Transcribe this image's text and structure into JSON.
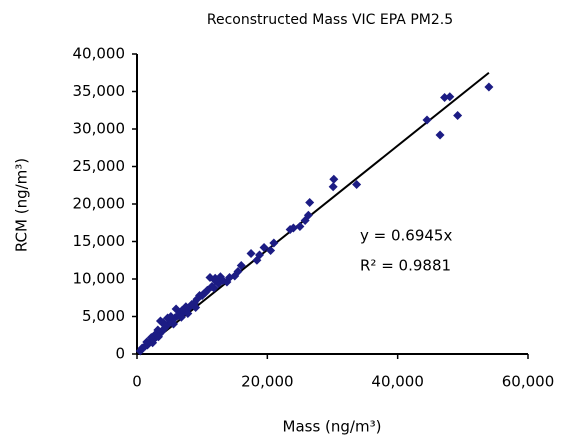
{
  "chart_data": {
    "type": "scatter",
    "title": "Reconstructed Mass VIC EPA PM2.5",
    "x_label": "Mass (ng/m³)",
    "y_label": "RCM (ng/m³)",
    "color": "#1c1c84",
    "line_color": "#000000",
    "x": [
      54000,
      49200,
      48000,
      47200,
      46500,
      44500,
      33700,
      30200,
      30100,
      26500,
      26300,
      25800,
      25000,
      24000,
      23500,
      21000,
      20500,
      19500,
      18800,
      18400,
      17500,
      16000,
      15500,
      14200,
      13800,
      12800,
      12500,
      12000,
      11500,
      11200,
      10800,
      10500,
      10000,
      9600,
      9200,
      8800,
      8400,
      8000,
      7500,
      7200,
      6900,
      6600,
      6200,
      5800,
      5400,
      5000,
      4700,
      4500,
      4200,
      4000,
      3800,
      3500,
      3200,
      3000,
      2800,
      2500,
      2200,
      1900,
      1600,
      1200,
      800,
      500,
      3600,
      4300,
      5200,
      6000,
      6400,
      7800,
      9000,
      11800,
      13200,
      15000,
      12000,
      10200,
      8600,
      2400,
      3300,
      1500,
      6800,
      5600
    ],
    "values": [
      35600,
      31800,
      34300,
      34200,
      29200,
      31200,
      22600,
      23300,
      22300,
      20200,
      18500,
      17800,
      17000,
      16800,
      16600,
      14800,
      13800,
      14200,
      13200,
      12500,
      13400,
      11800,
      11000,
      10200,
      9600,
      10300,
      9400,
      10100,
      9000,
      10200,
      8500,
      8200,
      7800,
      7800,
      7300,
      6800,
      6600,
      6200,
      6300,
      5600,
      5800,
      5400,
      5100,
      4800,
      4600,
      4200,
      4800,
      3700,
      3400,
      4200,
      3000,
      2700,
      3200,
      2300,
      2600,
      1900,
      2200,
      1500,
      1200,
      1000,
      800,
      400,
      4400,
      3800,
      5000,
      6000,
      5200,
      5400,
      6200,
      8800,
      9800,
      10400,
      9800,
      8000,
      6600,
      1500,
      2300,
      1600,
      4900,
      4000
    ],
    "xlim": [
      0,
      60000
    ],
    "xticks": [
      0,
      {
        "value": 20000,
        "label": "20,000"
      },
      {
        "value": 40000,
        "label": "40,000"
      },
      {
        "value": 60000,
        "label": "60,000"
      }
    ],
    "ylim": [
      0,
      40000
    ],
    "yticks": [
      0,
      {
        "value": 5000,
        "label": "5,000"
      },
      {
        "value": 10000,
        "label": "10,000"
      },
      {
        "value": 15000,
        "label": "15,000"
      },
      {
        "value": 20000,
        "label": "20,000"
      },
      {
        "value": 25000,
        "label": "25,000"
      },
      {
        "value": 30000,
        "label": "30,000"
      },
      {
        "value": 35000,
        "label": "35,000"
      },
      {
        "value": 40000,
        "label": "40,000"
      }
    ],
    "grid": false,
    "trendline": {
      "slope": 0.6945,
      "label": "y = 0.6945x",
      "r2": 0.9881,
      "r2_label": "R² = 0.9881"
    }
  }
}
